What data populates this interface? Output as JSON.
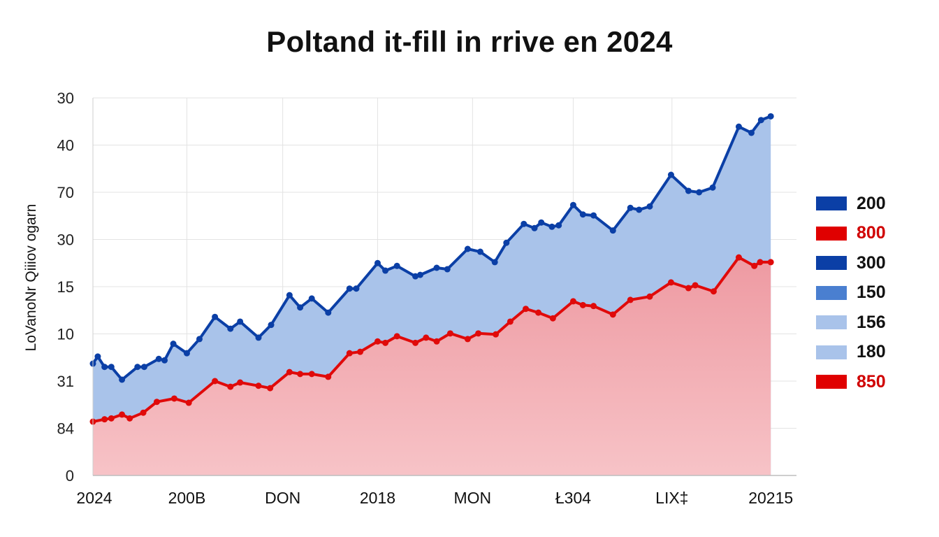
{
  "chart_data": {
    "type": "area",
    "title": "Poltand it-fill in rrive en 2024",
    "ylabel": "LoVanoNr Qiiiov ogarn",
    "xlabel": "",
    "grid": true,
    "legend_position": "right",
    "xlim": [
      0,
      7.3
    ],
    "ylim": [
      0,
      8
    ],
    "y_ticks": [
      {
        "value": 0,
        "label": "0"
      },
      {
        "value": 1,
        "label": "84"
      },
      {
        "value": 2,
        "label": "31"
      },
      {
        "value": 3,
        "label": "10"
      },
      {
        "value": 4,
        "label": "15"
      },
      {
        "value": 5,
        "label": "30"
      },
      {
        "value": 6,
        "label": "70"
      },
      {
        "value": 7,
        "label": "40"
      },
      {
        "value": 8,
        "label": "30"
      }
    ],
    "x_ticks": [
      {
        "value": 0,
        "label": "2024"
      },
      {
        "value": 0.97,
        "label": "200B"
      },
      {
        "value": 1.96,
        "label": "DON"
      },
      {
        "value": 2.94,
        "label": "2018"
      },
      {
        "value": 3.92,
        "label": "MON"
      },
      {
        "value": 4.96,
        "label": "Ł304"
      },
      {
        "value": 5.98,
        "label": "LIX‡"
      },
      {
        "value": 7.0,
        "label": "20215"
      }
    ],
    "series": [
      {
        "color": "#0b3fa6",
        "fill": "#a9c3ea",
        "points": [
          [
            0,
            2.37
          ],
          [
            0.05,
            2.52
          ],
          [
            0.12,
            2.3
          ],
          [
            0.19,
            2.3
          ],
          [
            0.3,
            2.03
          ],
          [
            0.46,
            2.3
          ],
          [
            0.53,
            2.3
          ],
          [
            0.68,
            2.47
          ],
          [
            0.74,
            2.44
          ],
          [
            0.83,
            2.79
          ],
          [
            0.97,
            2.59
          ],
          [
            1.1,
            2.89
          ],
          [
            1.26,
            3.36
          ],
          [
            1.42,
            3.11
          ],
          [
            1.52,
            3.26
          ],
          [
            1.71,
            2.92
          ],
          [
            1.84,
            3.19
          ],
          [
            2.03,
            3.82
          ],
          [
            2.14,
            3.56
          ],
          [
            2.26,
            3.75
          ],
          [
            2.43,
            3.45
          ],
          [
            2.65,
            3.96
          ],
          [
            2.72,
            3.96
          ],
          [
            2.94,
            4.5
          ],
          [
            3.02,
            4.34
          ],
          [
            3.14,
            4.44
          ],
          [
            3.33,
            4.22
          ],
          [
            3.38,
            4.25
          ],
          [
            3.55,
            4.4
          ],
          [
            3.66,
            4.37
          ],
          [
            3.87,
            4.8
          ],
          [
            4.0,
            4.74
          ],
          [
            4.15,
            4.52
          ],
          [
            4.27,
            4.93
          ],
          [
            4.45,
            5.33
          ],
          [
            4.56,
            5.24
          ],
          [
            4.63,
            5.36
          ],
          [
            4.74,
            5.27
          ],
          [
            4.81,
            5.3
          ],
          [
            4.96,
            5.73
          ],
          [
            5.06,
            5.53
          ],
          [
            5.17,
            5.51
          ],
          [
            5.37,
            5.19
          ],
          [
            5.55,
            5.67
          ],
          [
            5.64,
            5.63
          ],
          [
            5.75,
            5.7
          ],
          [
            5.97,
            6.37
          ],
          [
            6.15,
            6.03
          ],
          [
            6.26,
            6.0
          ],
          [
            6.4,
            6.1
          ],
          [
            6.67,
            7.39
          ],
          [
            6.8,
            7.26
          ],
          [
            6.9,
            7.53
          ],
          [
            7.0,
            7.61
          ]
        ]
      },
      {
        "color": "#e00a0a",
        "fill": "#f2aab0",
        "points": [
          [
            0,
            1.14
          ],
          [
            0.12,
            1.19
          ],
          [
            0.19,
            1.21
          ],
          [
            0.3,
            1.29
          ],
          [
            0.38,
            1.21
          ],
          [
            0.52,
            1.33
          ],
          [
            0.66,
            1.56
          ],
          [
            0.84,
            1.63
          ],
          [
            0.99,
            1.54
          ],
          [
            1.26,
            2.0
          ],
          [
            1.42,
            1.88
          ],
          [
            1.52,
            1.97
          ],
          [
            1.71,
            1.9
          ],
          [
            1.83,
            1.85
          ],
          [
            2.03,
            2.19
          ],
          [
            2.14,
            2.15
          ],
          [
            2.26,
            2.15
          ],
          [
            2.43,
            2.09
          ],
          [
            2.65,
            2.59
          ],
          [
            2.76,
            2.62
          ],
          [
            2.94,
            2.84
          ],
          [
            3.02,
            2.81
          ],
          [
            3.14,
            2.95
          ],
          [
            3.33,
            2.81
          ],
          [
            3.44,
            2.92
          ],
          [
            3.55,
            2.84
          ],
          [
            3.69,
            3.01
          ],
          [
            3.87,
            2.89
          ],
          [
            3.98,
            3.01
          ],
          [
            4.16,
            2.99
          ],
          [
            4.31,
            3.26
          ],
          [
            4.47,
            3.53
          ],
          [
            4.6,
            3.45
          ],
          [
            4.75,
            3.33
          ],
          [
            4.96,
            3.69
          ],
          [
            5.06,
            3.61
          ],
          [
            5.17,
            3.59
          ],
          [
            5.37,
            3.41
          ],
          [
            5.55,
            3.72
          ],
          [
            5.75,
            3.79
          ],
          [
            5.97,
            4.09
          ],
          [
            6.15,
            3.97
          ],
          [
            6.22,
            4.03
          ],
          [
            6.41,
            3.9
          ],
          [
            6.67,
            4.62
          ],
          [
            6.83,
            4.44
          ],
          [
            6.89,
            4.52
          ],
          [
            7.0,
            4.52
          ]
        ]
      }
    ],
    "legend": [
      {
        "label": "200",
        "color": "#0b3fa6",
        "text_color": "#111111"
      },
      {
        "label": "800",
        "color": "#e00000",
        "text_color": "#d00000"
      },
      {
        "label": "300",
        "color": "#0b3fa6",
        "text_color": "#111111"
      },
      {
        "label": "150",
        "color": "#4a7fd0",
        "text_color": "#111111"
      },
      {
        "label": "156",
        "color": "#a9c3ea",
        "text_color": "#111111"
      },
      {
        "label": "180",
        "color": "#a9c3ea",
        "text_color": "#111111"
      },
      {
        "label": "850",
        "color": "#e00000",
        "text_color": "#d00000"
      }
    ]
  }
}
